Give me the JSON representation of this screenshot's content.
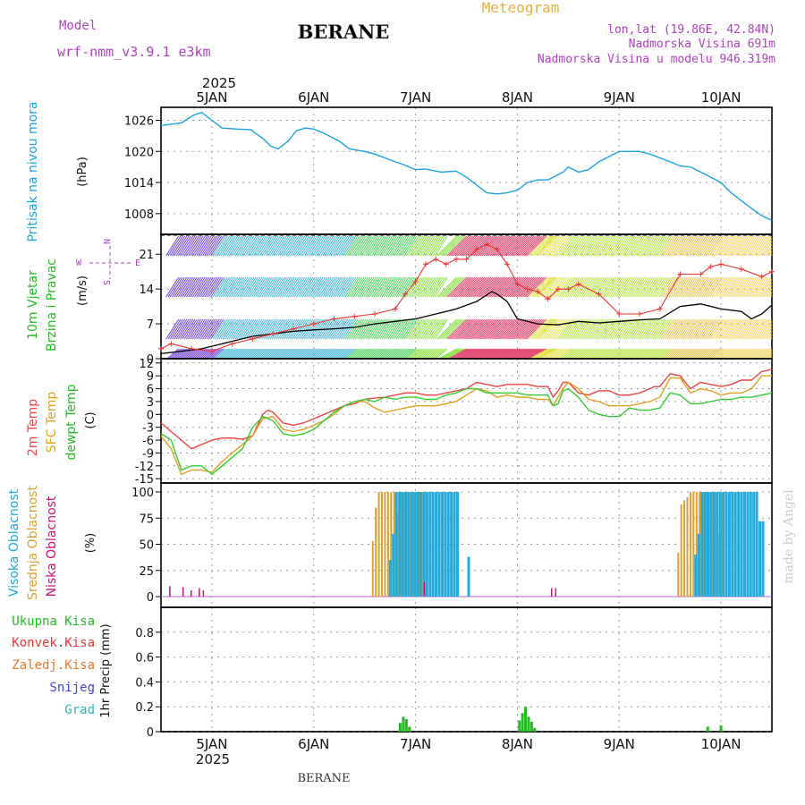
{
  "header": {
    "model_label": "Model",
    "model_name": "wrf-nmm_v3.9.1  e3km",
    "station": "BERANE",
    "chart_kind": "Meteogram",
    "coords": "lon,lat (19.86E, 42.84N)",
    "elevation": "Nadmorska Visina 691m",
    "model_elevation": "Nadmorska Visina u modelu 946.319m",
    "footer_station": "BERANE",
    "watermark": "made by Angel"
  },
  "colors": {
    "pressure": "#1aa3e6",
    "wind_label": "#22bb22",
    "wind_speed_line": "#000000",
    "gust": "#ee3333",
    "temp2m": "#ee4444",
    "sfc_temp": "#e0a020",
    "dewpoint": "#33cc33",
    "cloud_high": "#22aadd",
    "cloud_mid": "#dda030",
    "cloud_low": "#cc1177",
    "precip_total": "#22bb22",
    "precip_conv": "#ee3333",
    "precip_frozen": "#ee7722",
    "snow": "#4444dd",
    "hail": "#22bbbb",
    "compass": "#aa44cc",
    "grid": "#999999",
    "title_orange": "#e8b040",
    "title_purple": "#b040c0"
  },
  "chart_data": [
    {
      "type": "line",
      "id": "pressure",
      "label": "Pritisak na nivou mora",
      "unit": "(hPa)",
      "ylim": [
        1004,
        1028.5
      ],
      "yticks": [
        1008,
        1014,
        1020,
        1026
      ],
      "x_day_start": 4.5,
      "x_day_end": 10.5,
      "series": [
        {
          "name": "MSLP",
          "x": [
            4.5,
            4.7,
            4.82,
            4.9,
            5.0,
            5.1,
            5.25,
            5.38,
            5.5,
            5.58,
            5.65,
            5.75,
            5.83,
            5.92,
            6.0,
            6.1,
            6.25,
            6.35,
            6.5,
            6.6,
            6.8,
            6.9,
            7.0,
            7.1,
            7.25,
            7.4,
            7.5,
            7.6,
            7.7,
            7.8,
            7.9,
            8.0,
            8.1,
            8.2,
            8.3,
            8.35,
            8.45,
            8.5,
            8.6,
            8.7,
            8.8,
            8.9,
            9.0,
            9.1,
            9.2,
            9.3,
            9.5,
            9.6,
            9.7,
            9.8,
            9.9,
            10.0,
            10.1,
            10.2,
            10.3,
            10.4,
            10.5
          ],
          "values": [
            1025,
            1025.5,
            1027,
            1027.5,
            1026,
            1024.5,
            1024.3,
            1024.2,
            1022.5,
            1021,
            1020.5,
            1022,
            1024,
            1024.5,
            1024.3,
            1023.5,
            1022,
            1020.5,
            1020,
            1019.5,
            1018,
            1017.3,
            1016.5,
            1016.6,
            1016,
            1016.2,
            1015,
            1013.5,
            1012,
            1011.8,
            1012,
            1012.5,
            1014,
            1014.5,
            1014.5,
            1015,
            1016,
            1017,
            1016,
            1016.5,
            1018,
            1019,
            1020,
            1020,
            1020,
            1019.5,
            1018,
            1017.2,
            1017,
            1016,
            1015,
            1014,
            1012,
            1010.5,
            1009,
            1007.6,
            1006.7
          ]
        }
      ]
    },
    {
      "type": "line",
      "id": "wind",
      "label_line1": "10m Vjetar",
      "label_line2": "Brzina i Pravac",
      "unit": "(m/s)",
      "ylim": [
        0,
        25
      ],
      "yticks": [
        0,
        7,
        14,
        21
      ],
      "compass_labels": {
        "n": "N",
        "s": "S",
        "w": "W",
        "e": "E"
      },
      "series": [
        {
          "name": "wind speed",
          "x": [
            4.5,
            4.7,
            4.9,
            5.0,
            5.2,
            5.4,
            5.6,
            5.8,
            6.0,
            6.2,
            6.4,
            6.6,
            6.8,
            7.0,
            7.2,
            7.4,
            7.6,
            7.7,
            7.75,
            7.8,
            7.9,
            8.0,
            8.2,
            8.4,
            8.6,
            8.8,
            9.0,
            9.2,
            9.4,
            9.6,
            9.8,
            10.0,
            10.2,
            10.3,
            10.4,
            10.5
          ],
          "values": [
            1,
            1.5,
            2,
            2.5,
            3.5,
            4.5,
            5,
            5.5,
            5.8,
            6,
            6.3,
            7,
            7.5,
            8,
            9,
            10,
            11.5,
            12.8,
            13.5,
            13,
            11.5,
            8,
            7,
            6.8,
            7.5,
            7.2,
            7.5,
            7.8,
            8,
            10.5,
            11,
            10,
            9.5,
            8,
            9,
            10.8
          ]
        },
        {
          "name": "wind gust",
          "x": [
            4.5,
            4.6,
            4.8,
            5.0,
            5.2,
            5.4,
            5.6,
            5.8,
            6.0,
            6.2,
            6.4,
            6.6,
            6.8,
            6.9,
            7.0,
            7.1,
            7.2,
            7.3,
            7.4,
            7.5,
            7.6,
            7.7,
            7.8,
            7.9,
            8.0,
            8.1,
            8.2,
            8.3,
            8.4,
            8.5,
            8.6,
            8.8,
            9.0,
            9.2,
            9.4,
            9.6,
            9.8,
            9.9,
            10.0,
            10.2,
            10.4,
            10.5
          ],
          "values": [
            2,
            3,
            2,
            1.5,
            3,
            4,
            5,
            6,
            7,
            8,
            8.5,
            9,
            10,
            13,
            15.5,
            19,
            20,
            19,
            20,
            20,
            22,
            23,
            22,
            19,
            15,
            14,
            13.5,
            12,
            14,
            14,
            15,
            13,
            9,
            9,
            10,
            17,
            17,
            18.5,
            19,
            18,
            16.5,
            17.5
          ]
        }
      ]
    },
    {
      "type": "line",
      "id": "temperature",
      "labels": [
        "2m Temp",
        "SFC Temp",
        "dewpt Temp"
      ],
      "unit": "(C)",
      "ylim": [
        -16,
        13
      ],
      "yticks": [
        -15,
        -12,
        -9,
        -6,
        -3,
        0,
        3,
        6,
        9,
        12
      ],
      "series": [
        {
          "name": "2m Temp",
          "x": [
            4.5,
            4.6,
            4.7,
            4.8,
            4.9,
            5.0,
            5.1,
            5.2,
            5.3,
            5.4,
            5.5,
            5.55,
            5.6,
            5.7,
            5.8,
            5.9,
            6.0,
            6.1,
            6.2,
            6.3,
            6.4,
            6.5,
            6.6,
            6.7,
            6.8,
            6.9,
            7.0,
            7.1,
            7.2,
            7.3,
            7.4,
            7.5,
            7.6,
            7.7,
            7.8,
            7.9,
            8.0,
            8.1,
            8.2,
            8.3,
            8.35,
            8.4,
            8.45,
            8.5,
            8.6,
            8.7,
            8.8,
            8.9,
            9.0,
            9.1,
            9.2,
            9.3,
            9.35,
            9.4,
            9.5,
            9.6,
            9.7,
            9.8,
            9.9,
            10.0,
            10.1,
            10.2,
            10.3,
            10.4,
            10.5
          ],
          "values": [
            -2,
            -4,
            -6,
            -8,
            -7,
            -6,
            -5.5,
            -5.5,
            -5.8,
            -5,
            0,
            1,
            0.5,
            -2,
            -2.5,
            -2,
            -1,
            0,
            1,
            2,
            2.5,
            3.5,
            3.8,
            4,
            4.5,
            5,
            5,
            4.5,
            4.5,
            5,
            5.5,
            6,
            7.5,
            7,
            6.5,
            7,
            7,
            7,
            6.5,
            6.5,
            4,
            5.5,
            7.5,
            7.5,
            5,
            4.5,
            5.5,
            5.5,
            4.5,
            4.5,
            5,
            6,
            6.5,
            6.5,
            9.5,
            9,
            6,
            7.5,
            7,
            6.5,
            7,
            8,
            8,
            10,
            10.5
          ]
        },
        {
          "name": "SFC Temp",
          "x": [
            4.5,
            4.6,
            4.7,
            4.8,
            4.9,
            5.0,
            5.1,
            5.2,
            5.3,
            5.4,
            5.5,
            5.6,
            5.7,
            5.8,
            5.9,
            6.0,
            6.1,
            6.2,
            6.3,
            6.4,
            6.5,
            6.6,
            6.7,
            6.8,
            6.9,
            7.0,
            7.1,
            7.2,
            7.3,
            7.4,
            7.5,
            7.6,
            7.7,
            7.8,
            7.9,
            8.0,
            8.1,
            8.2,
            8.3,
            8.35,
            8.4,
            8.45,
            8.5,
            8.6,
            8.7,
            8.8,
            8.9,
            9.0,
            9.1,
            9.2,
            9.3,
            9.4,
            9.5,
            9.6,
            9.7,
            9.8,
            9.9,
            10.0,
            10.1,
            10.2,
            10.3,
            10.4,
            10.5
          ],
          "values": [
            -5,
            -8,
            -14,
            -13,
            -13,
            -13.5,
            -11,
            -9,
            -7,
            -5,
            -1,
            -0.5,
            -3.5,
            -4,
            -3.5,
            -2.5,
            -1.5,
            0,
            2,
            3,
            3,
            1.5,
            0.5,
            1,
            1.5,
            2,
            2,
            2,
            2.5,
            3,
            4.5,
            6,
            5.5,
            4,
            4.5,
            4,
            4,
            3.5,
            3.5,
            2,
            4,
            6,
            7.5,
            6,
            3.5,
            3,
            2,
            2,
            2,
            2.5,
            3,
            4,
            8.5,
            8.5,
            5,
            6,
            5.5,
            4.5,
            5,
            5,
            6,
            9,
            9
          ]
        },
        {
          "name": "dewpt Temp",
          "x": [
            4.5,
            4.6,
            4.7,
            4.8,
            4.9,
            5.0,
            5.1,
            5.2,
            5.3,
            5.4,
            5.5,
            5.6,
            5.7,
            5.8,
            5.9,
            6.0,
            6.1,
            6.2,
            6.3,
            6.4,
            6.5,
            6.6,
            6.7,
            6.8,
            6.9,
            7.0,
            7.1,
            7.2,
            7.3,
            7.4,
            7.5,
            7.6,
            7.7,
            7.8,
            7.9,
            8.0,
            8.1,
            8.2,
            8.3,
            8.35,
            8.4,
            8.45,
            8.5,
            8.6,
            8.7,
            8.8,
            8.9,
            9.0,
            9.1,
            9.2,
            9.3,
            9.4,
            9.5,
            9.6,
            9.7,
            9.8,
            9.9,
            10.0,
            10.1,
            10.2,
            10.3,
            10.4,
            10.5
          ],
          "values": [
            -4.5,
            -6,
            -13,
            -12,
            -12,
            -14,
            -12,
            -10,
            -8,
            -3,
            -0.5,
            -1.5,
            -4.5,
            -5,
            -4.5,
            -3.5,
            -1.5,
            0.5,
            2,
            3,
            3.5,
            3,
            4,
            3.5,
            4,
            4,
            3.5,
            3.5,
            4.5,
            5,
            6,
            6,
            5,
            5,
            5,
            5,
            4.5,
            4.5,
            4.5,
            2,
            2.5,
            5.5,
            6,
            4,
            1,
            0,
            -0.5,
            -0.5,
            1.5,
            1,
            1,
            1.5,
            5,
            4.5,
            2.5,
            2.5,
            3,
            3.5,
            3.5,
            4,
            4,
            4.5,
            5
          ]
        }
      ]
    },
    {
      "type": "bar",
      "id": "cloud",
      "labels": [
        "Visoka Oblacnost",
        "Srednja Oblacnost",
        "Niska Oblacnost"
      ],
      "unit": "(%)",
      "ylim": [
        0,
        100
      ],
      "yticks": [
        0,
        25,
        50,
        75,
        100
      ],
      "high": {
        "x": [
          6.73,
          6.76,
          6.79,
          6.82,
          6.85,
          6.88,
          6.91,
          6.94,
          6.97,
          7.0,
          7.03,
          7.06,
          7.09,
          7.12,
          7.15,
          7.18,
          7.21,
          7.24,
          7.27,
          7.3,
          7.33,
          7.36,
          7.39,
          7.5,
          9.73,
          9.76,
          9.79,
          9.82,
          9.85,
          9.88,
          9.91,
          9.94,
          9.97,
          10.0,
          10.03,
          10.06,
          10.09,
          10.12,
          10.15,
          10.18,
          10.21,
          10.24,
          10.27,
          10.3,
          10.33,
          10.36,
          10.39
        ],
        "values": [
          35,
          60,
          100,
          100,
          100,
          100,
          100,
          100,
          100,
          100,
          100,
          100,
          100,
          100,
          100,
          100,
          100,
          100,
          100,
          100,
          100,
          100,
          100,
          38,
          40,
          60,
          100,
          100,
          100,
          100,
          100,
          100,
          100,
          100,
          100,
          100,
          100,
          100,
          100,
          100,
          100,
          100,
          100,
          100,
          100,
          72,
          72
        ]
      },
      "mid": {
        "x": [
          6.58,
          6.61,
          6.64,
          6.67,
          6.7,
          6.73,
          6.76,
          6.79,
          6.82,
          6.85,
          6.88,
          6.91,
          6.94,
          6.97,
          7.0,
          7.03,
          7.06,
          7.09,
          9.58,
          9.61,
          9.64,
          9.67,
          9.7,
          9.73,
          9.76,
          9.79,
          9.82,
          9.85,
          9.88,
          9.91,
          9.94,
          9.97,
          10.0
        ],
        "values": [
          53,
          85,
          100,
          100,
          100,
          100,
          100,
          100,
          80,
          100,
          100,
          100,
          100,
          100,
          100,
          100,
          100,
          100,
          42,
          88,
          92,
          95,
          100,
          100,
          100,
          100,
          100,
          100,
          100,
          100,
          100,
          60,
          100
        ]
      },
      "low": {
        "x": [
          4.58,
          4.71,
          4.79,
          4.87,
          4.91,
          7.08,
          8.33,
          8.37
        ],
        "values": [
          10,
          9,
          6,
          8,
          6,
          14,
          8,
          8
        ]
      }
    },
    {
      "type": "bar",
      "id": "precip",
      "labels": [
        "Ukupna Kisa",
        "Konvek.Kisa",
        "Zaledj.Kisa",
        "Snijeg",
        "Grad"
      ],
      "unit": "1hr Precip (mm)",
      "ylim": [
        0,
        1.0
      ],
      "yticks": [
        0,
        0.2,
        0.4,
        0.6,
        0.8
      ],
      "series": [
        {
          "name": "Ukupna Kisa",
          "x": [
            6.85,
            6.88,
            6.91,
            6.94,
            8.02,
            8.05,
            8.08,
            8.11,
            8.14,
            8.17,
            9.87,
            10.0
          ],
          "values": [
            0.07,
            0.12,
            0.1,
            0.04,
            0.09,
            0.15,
            0.2,
            0.12,
            0.08,
            0.03,
            0.04,
            0.05
          ]
        }
      ]
    }
  ],
  "x_axis": {
    "day_labels": [
      "5JAN",
      "6JAN",
      "7JAN",
      "8JAN",
      "9JAN",
      "10JAN"
    ],
    "day_values": [
      5,
      6,
      7,
      8,
      9,
      10
    ],
    "year": "2025"
  }
}
